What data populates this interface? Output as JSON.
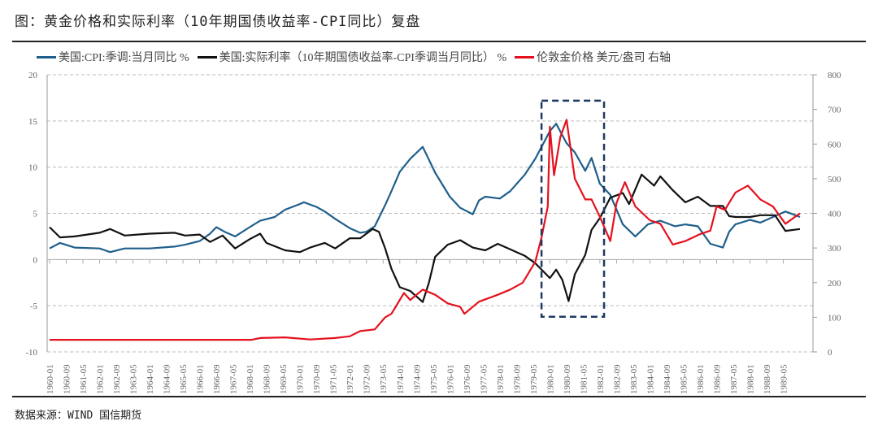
{
  "title": "图：黄金价格和实际利率（10年期国债收益率-CPI同比）复盘",
  "source": "数据来源：WIND 国信期货",
  "colors": {
    "cpi": "#1f5f8b",
    "real_rate": "#111111",
    "gold": "#e5111e",
    "box": "#1f3864",
    "grid": "#bbbbbb"
  },
  "chart_data": {
    "type": "line",
    "title": "",
    "legend_placement": "top",
    "grid": "horizontal dashed",
    "ylim_left": [
      -10,
      20
    ],
    "yticks_left": [
      -10,
      -5,
      0,
      5,
      10,
      15,
      20
    ],
    "ylim_right": [
      0,
      800
    ],
    "yticks_right": [
      0,
      100,
      200,
      300,
      400,
      500,
      600,
      700,
      800
    ],
    "xlim": [
      "1960-01",
      "1990-06"
    ],
    "xticks": [
      "1960-01",
      "1960-09",
      "1961-05",
      "1962-01",
      "1962-09",
      "1963-05",
      "1964-01",
      "1964-09",
      "1965-05",
      "1966-01",
      "1966-09",
      "1967-05",
      "1968-01",
      "1968-09",
      "1969-05",
      "1970-01",
      "1970-09",
      "1971-05",
      "1972-01",
      "1972-09",
      "1973-05",
      "1974-01",
      "1974-09",
      "1975-05",
      "1976-01",
      "1976-09",
      "1977-05",
      "1978-01",
      "1978-09",
      "1979-05",
      "1980-01",
      "1980-09",
      "1981-05",
      "1982-01",
      "1982-09",
      "1983-05",
      "1984-01",
      "1984-09",
      "1985-05",
      "1986-01",
      "1986-09",
      "1987-05",
      "1988-01",
      "1988-09",
      "1989-05"
    ],
    "series": [
      {
        "name": "美国:CPI:季调:当月同比 %",
        "axis": "left",
        "color": "#1f5f8b",
        "x": [
          "1960-01",
          "1960-06",
          "1961-01",
          "1962-01",
          "1962-06",
          "1963-01",
          "1964-01",
          "1965-01",
          "1965-06",
          "1966-01",
          "1966-06",
          "1966-09",
          "1967-01",
          "1967-06",
          "1968-01",
          "1968-06",
          "1969-01",
          "1969-06",
          "1970-01",
          "1970-03",
          "1970-09",
          "1971-01",
          "1971-06",
          "1972-01",
          "1972-06",
          "1972-09",
          "1973-01",
          "1973-06",
          "1973-09",
          "1974-01",
          "1974-06",
          "1974-12",
          "1975-06",
          "1976-01",
          "1976-06",
          "1976-12",
          "1977-03",
          "1977-06",
          "1978-01",
          "1978-06",
          "1979-01",
          "1979-06",
          "1980-01",
          "1980-04",
          "1980-09",
          "1981-01",
          "1981-06",
          "1981-09",
          "1982-01",
          "1982-06",
          "1982-12",
          "1983-06",
          "1983-12",
          "1984-06",
          "1985-01",
          "1985-06",
          "1985-12",
          "1986-06",
          "1986-12",
          "1987-03",
          "1987-06",
          "1988-01",
          "1988-06",
          "1989-01",
          "1989-06",
          "1990-01"
        ],
        "values": [
          1.2,
          1.8,
          1.3,
          1.2,
          0.8,
          1.2,
          1.2,
          1.4,
          1.6,
          2.0,
          2.8,
          3.5,
          3.0,
          2.5,
          3.5,
          4.2,
          4.6,
          5.4,
          6.0,
          6.2,
          5.7,
          5.2,
          4.4,
          3.4,
          2.9,
          3.0,
          3.6,
          5.9,
          7.4,
          9.5,
          10.9,
          12.2,
          9.4,
          6.8,
          5.6,
          4.9,
          6.4,
          6.8,
          6.6,
          7.4,
          9.2,
          10.9,
          13.9,
          14.7,
          12.6,
          11.6,
          9.6,
          11.0,
          8.2,
          7.0,
          3.8,
          2.5,
          3.8,
          4.2,
          3.6,
          3.8,
          3.6,
          1.7,
          1.3,
          3.0,
          3.8,
          4.3,
          4.0,
          4.7,
          5.2,
          4.6
        ]
      },
      {
        "name": "美国:实际利率（10年期国债收益率-CPI季调当月同比） %",
        "axis": "left",
        "color": "#111111",
        "x": [
          "1960-01",
          "1960-06",
          "1961-01",
          "1962-01",
          "1962-06",
          "1963-01",
          "1964-01",
          "1965-01",
          "1965-06",
          "1966-01",
          "1966-06",
          "1966-12",
          "1967-06",
          "1968-01",
          "1968-06",
          "1968-09",
          "1969-06",
          "1970-01",
          "1970-06",
          "1971-01",
          "1971-06",
          "1972-01",
          "1972-06",
          "1972-12",
          "1973-03",
          "1973-06",
          "1973-09",
          "1974-01",
          "1974-06",
          "1974-12",
          "1975-03",
          "1975-06",
          "1975-12",
          "1976-06",
          "1976-12",
          "1977-06",
          "1977-12",
          "1978-06",
          "1979-01",
          "1979-06",
          "1980-01",
          "1980-04",
          "1980-07",
          "1980-10",
          "1981-01",
          "1981-06",
          "1981-09",
          "1982-01",
          "1982-06",
          "1982-12",
          "1983-03",
          "1983-09",
          "1984-03",
          "1984-06",
          "1984-12",
          "1985-06",
          "1985-12",
          "1986-06",
          "1986-12",
          "1987-03",
          "1987-06",
          "1988-01",
          "1988-06",
          "1989-01",
          "1989-06",
          "1990-01"
        ],
        "values": [
          3.5,
          2.4,
          2.5,
          2.9,
          3.3,
          2.6,
          2.8,
          2.9,
          2.6,
          2.7,
          1.9,
          2.6,
          1.2,
          2.2,
          2.8,
          1.8,
          1.0,
          0.8,
          1.3,
          1.8,
          1.2,
          2.3,
          2.3,
          3.3,
          3.0,
          1.2,
          -1.0,
          -3.0,
          -3.4,
          -4.6,
          -2.5,
          0.3,
          1.6,
          2.1,
          1.3,
          1.0,
          1.7,
          1.1,
          0.4,
          -0.4,
          -2.0,
          -1.1,
          -2.2,
          -4.5,
          -1.6,
          0.5,
          3.2,
          4.5,
          6.7,
          7.2,
          6.0,
          9.2,
          8.0,
          9.0,
          7.5,
          6.2,
          6.8,
          5.8,
          5.8,
          4.7,
          4.6,
          4.6,
          4.8,
          4.8,
          3.1,
          3.3
        ]
      },
      {
        "name": "伦敦金价格 美元/盎司 右轴",
        "axis": "right",
        "color": "#e5111e",
        "x": [
          "1960-01",
          "1968-02",
          "1968-06",
          "1969-06",
          "1970-06",
          "1971-06",
          "1972-01",
          "1972-06",
          "1973-01",
          "1973-06",
          "1973-09",
          "1974-03",
          "1974-06",
          "1974-12",
          "1975-06",
          "1975-12",
          "1976-06",
          "1976-08",
          "1977-03",
          "1977-12",
          "1978-06",
          "1978-12",
          "1979-06",
          "1979-09",
          "1979-12",
          "1980-01",
          "1980-03",
          "1980-06",
          "1980-09",
          "1981-01",
          "1981-06",
          "1981-09",
          "1982-01",
          "1982-06",
          "1982-09",
          "1983-01",
          "1983-06",
          "1984-01",
          "1984-06",
          "1984-12",
          "1985-06",
          "1986-01",
          "1986-06",
          "1986-09",
          "1987-01",
          "1987-06",
          "1987-12",
          "1988-06",
          "1988-12",
          "1989-06",
          "1990-01"
        ],
        "values": [
          35,
          35,
          40,
          42,
          36,
          40,
          45,
          60,
          65,
          100,
          110,
          170,
          150,
          180,
          165,
          140,
          130,
          110,
          145,
          165,
          180,
          200,
          260,
          330,
          420,
          650,
          510,
          620,
          670,
          500,
          440,
          440,
          390,
          320,
          430,
          490,
          420,
          380,
          370,
          310,
          320,
          340,
          350,
          420,
          410,
          460,
          480,
          440,
          420,
          370,
          400
        ]
      }
    ],
    "annotations": [
      {
        "type": "dashed-box",
        "x": [
          "1979-09",
          "1982-03"
        ],
        "y_left": [
          -6.2,
          17.2
        ],
        "color": "#1f3864"
      }
    ]
  },
  "legend": [
    "美国:CPI:季调:当月同比 %",
    "美国:实际利率（10年期国债收益率-CPI季调当月同比） %",
    "伦敦金价格 美元/盎司 右轴"
  ]
}
